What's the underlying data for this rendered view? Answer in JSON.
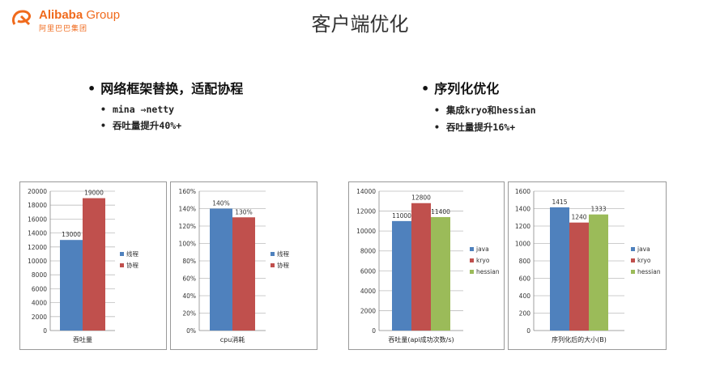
{
  "brand": {
    "name": "Alibaba",
    "group": "Group",
    "sub": "阿里巴巴集团"
  },
  "title": "客户端优化",
  "left_section": {
    "heading": "网络框架替换，适配协程",
    "items": [
      "mina ⇒netty",
      "吞吐量提升40%+"
    ]
  },
  "right_section": {
    "heading": "序列化优化",
    "items": [
      "集成kryo和hessian",
      "吞吐量提升16%+"
    ]
  },
  "colors": {
    "blue": "#4f81bd",
    "red": "#c0504d",
    "green": "#9bbb59",
    "brand": "#f06a1c"
  },
  "chart_data": [
    {
      "type": "bar",
      "categories": [
        "吞吐量"
      ],
      "series": [
        {
          "name": "线程",
          "values": [
            13000
          ],
          "labels": [
            "13000"
          ]
        },
        {
          "name": "协程",
          "values": [
            19000
          ],
          "labels": [
            "19000"
          ]
        }
      ],
      "yticks": [
        "0",
        "2000",
        "4000",
        "6000",
        "8000",
        "10000",
        "12000",
        "14000",
        "16000",
        "18000",
        "20000"
      ],
      "ylim": [
        0,
        20000
      ],
      "grid": true,
      "legend": "right"
    },
    {
      "type": "bar",
      "categories": [
        "cpu消耗"
      ],
      "series": [
        {
          "name": "线程",
          "values": [
            140
          ],
          "labels": [
            "140%"
          ]
        },
        {
          "name": "协程",
          "values": [
            130
          ],
          "labels": [
            "130%"
          ]
        }
      ],
      "yticks": [
        "0%",
        "20%",
        "40%",
        "60%",
        "80%",
        "100%",
        "120%",
        "140%",
        "160%"
      ],
      "ylim": [
        0,
        160
      ],
      "grid": true,
      "legend": "right"
    },
    {
      "type": "bar",
      "categories": [
        "吞吐量(api成功次数/s)"
      ],
      "series": [
        {
          "name": "java",
          "values": [
            11000
          ],
          "labels": [
            "11000"
          ]
        },
        {
          "name": "kryo",
          "values": [
            12800
          ],
          "labels": [
            "12800"
          ]
        },
        {
          "name": "hessian",
          "values": [
            11400
          ],
          "labels": [
            "11400"
          ]
        }
      ],
      "yticks": [
        "0",
        "2000",
        "4000",
        "6000",
        "8000",
        "10000",
        "12000",
        "14000"
      ],
      "ylim": [
        0,
        14000
      ],
      "grid": true,
      "legend": "right"
    },
    {
      "type": "bar",
      "categories": [
        "序列化后的大小(B)"
      ],
      "series": [
        {
          "name": "java",
          "values": [
            1415
          ],
          "labels": [
            "1415"
          ]
        },
        {
          "name": "kryo",
          "values": [
            1240
          ],
          "labels": [
            "1240"
          ]
        },
        {
          "name": "hessian",
          "values": [
            1333
          ],
          "labels": [
            "1333"
          ]
        }
      ],
      "yticks": [
        "0",
        "200",
        "400",
        "600",
        "800",
        "1000",
        "1200",
        "1400",
        "1600"
      ],
      "ylim": [
        0,
        1600
      ],
      "grid": true,
      "legend": "right"
    }
  ]
}
